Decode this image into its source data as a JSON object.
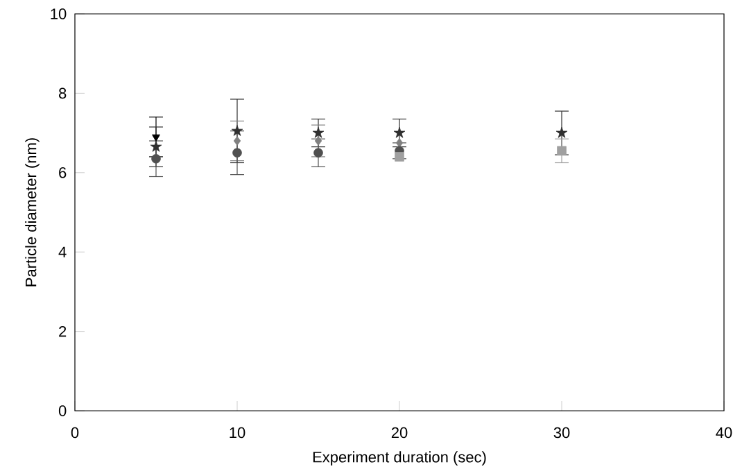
{
  "chart_data": {
    "type": "scatter",
    "xlabel": "Experiment duration (sec)",
    "ylabel": "Particle diameter (nm)",
    "xlim": [
      0,
      40
    ],
    "ylim": [
      0,
      10
    ],
    "xticks": [
      0,
      10,
      20,
      30,
      40
    ],
    "yticks": [
      0,
      2,
      4,
      6,
      8,
      10
    ],
    "series": [
      {
        "color": "#000000",
        "marker": "triangle",
        "x": [
          5
        ],
        "values": [
          6.9
        ],
        "errors": [
          0.5
        ]
      },
      {
        "color": "#303030",
        "marker": "star",
        "x": [
          5,
          10,
          15,
          20,
          30
        ],
        "values": [
          6.65,
          7.05,
          7.0,
          7.0,
          7.0
        ],
        "errors": [
          0.5,
          0.8,
          0.35,
          0.35,
          0.55
        ]
      },
      {
        "color": "#808080",
        "marker": "diamond",
        "x": [
          10,
          15,
          20
        ],
        "values": [
          6.8,
          6.8,
          6.75
        ],
        "errors": [
          0.5,
          0.4,
          null
        ]
      },
      {
        "color": "#505050",
        "marker": "circle",
        "x": [
          5,
          10,
          15,
          20
        ],
        "values": [
          6.35,
          6.5,
          6.5,
          6.55
        ],
        "errors": [
          0.45,
          0.55,
          0.35,
          0.2
        ]
      },
      {
        "color": "#a0a0a0",
        "marker": "square",
        "x": [
          20,
          30
        ],
        "values": [
          6.4,
          6.55
        ],
        "errors": [
          null,
          0.3
        ]
      }
    ]
  }
}
